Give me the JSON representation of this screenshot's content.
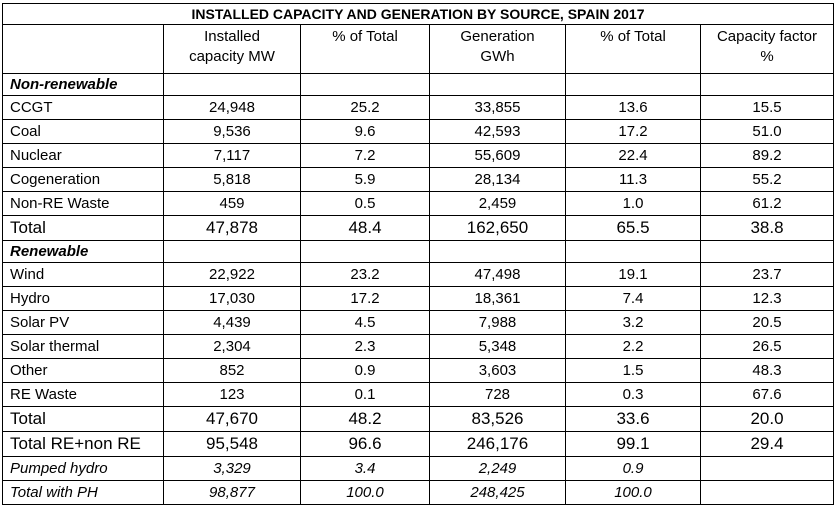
{
  "title": "INSTALLED CAPACITY AND GENERATION BY SOURCE, SPAIN 2017",
  "headers": {
    "installed": [
      "Installed",
      "capacity MW"
    ],
    "pct_total_1": "% of Total",
    "generation": [
      "Generation",
      "GWh"
    ],
    "pct_total_2": "% of Total",
    "capacity_factor": [
      "Capacity factor",
      "%"
    ]
  },
  "rows": [
    {
      "type": "section",
      "label": "Non-renewable"
    },
    {
      "type": "data",
      "label": "CCGT",
      "cells": [
        "24,948",
        "25.2",
        "33,855",
        "13.6",
        "15.5"
      ]
    },
    {
      "type": "data",
      "label": "Coal",
      "cells": [
        "9,536",
        "9.6",
        "42,593",
        "17.2",
        "51.0"
      ]
    },
    {
      "type": "data",
      "label": "Nuclear",
      "cells": [
        "7,117",
        "7.2",
        "55,609",
        "22.4",
        "89.2"
      ]
    },
    {
      "type": "data",
      "label": "Cogeneration",
      "cells": [
        "5,818",
        "5.9",
        "28,134",
        "11.3",
        "55.2"
      ]
    },
    {
      "type": "data",
      "label": "Non-RE Waste",
      "cells": [
        "459",
        "0.5",
        "2,459",
        "1.0",
        "61.2"
      ]
    },
    {
      "type": "total",
      "label": "Total",
      "cells": [
        "47,878",
        "48.4",
        "162,650",
        "65.5",
        "38.8"
      ]
    },
    {
      "type": "section",
      "label": "Renewable"
    },
    {
      "type": "data",
      "label": "Wind",
      "cells": [
        "22,922",
        "23.2",
        "47,498",
        "19.1",
        "23.7"
      ]
    },
    {
      "type": "data",
      "label": "Hydro",
      "cells": [
        "17,030",
        "17.2",
        "18,361",
        "7.4",
        "12.3"
      ]
    },
    {
      "type": "data",
      "label": "Solar PV",
      "cells": [
        "4,439",
        "4.5",
        "7,988",
        "3.2",
        "20.5"
      ]
    },
    {
      "type": "data",
      "label": "Solar thermal",
      "cells": [
        "2,304",
        "2.3",
        "5,348",
        "2.2",
        "26.5"
      ]
    },
    {
      "type": "data",
      "label": "Other",
      "cells": [
        "852",
        "0.9",
        "3,603",
        "1.5",
        "48.3"
      ]
    },
    {
      "type": "data",
      "label": "RE Waste",
      "cells": [
        "123",
        "0.1",
        "728",
        "0.3",
        "67.6"
      ]
    },
    {
      "type": "total",
      "label": "Total",
      "cells": [
        "47,670",
        "48.2",
        "83,526",
        "33.6",
        "20.0"
      ]
    },
    {
      "type": "total",
      "label": "Total RE+non RE",
      "cells": [
        "95,548",
        "96.6",
        "246,176",
        "99.1",
        "29.4"
      ]
    },
    {
      "type": "italic",
      "label": "Pumped hydro",
      "cells": [
        "3,329",
        "3.4",
        "2,249",
        "0.9",
        ""
      ]
    },
    {
      "type": "italic",
      "label": "Total with PH",
      "cells": [
        "98,877",
        "100.0",
        "248,425",
        "100.0",
        ""
      ]
    }
  ]
}
